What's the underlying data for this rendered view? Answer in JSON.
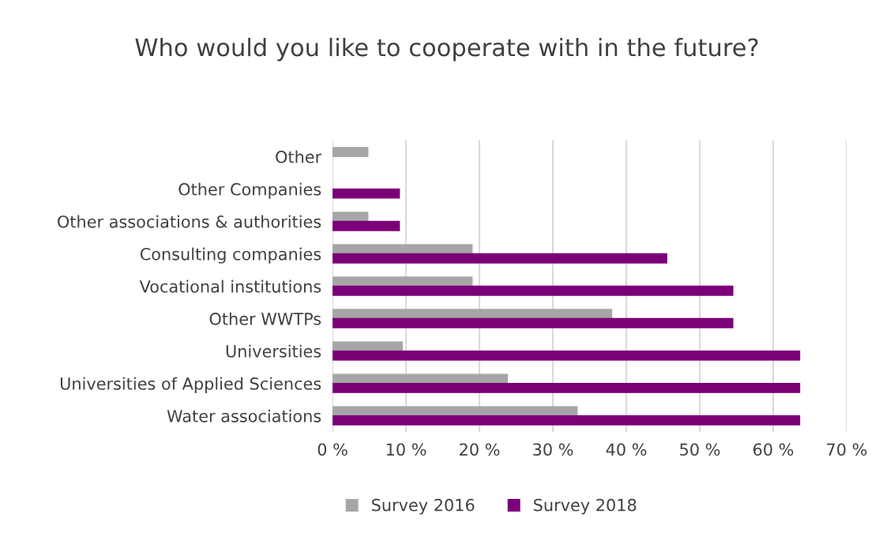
{
  "chart_data": {
    "type": "bar",
    "orientation": "horizontal",
    "title": "Who would you like to cooperate with in the future?",
    "categories": [
      "Other",
      "Other Companies",
      "Other associations & authorities",
      "Consulting companies",
      "Vocational institutions",
      "Other WWTPs",
      "Universities",
      "Universities of Applied Sciences",
      "Water associations"
    ],
    "series": [
      {
        "name": "Survey 2016",
        "color": "#a6a6a6",
        "values": [
          4.8,
          null,
          4.8,
          19.0,
          19.0,
          38.0,
          9.5,
          23.8,
          33.3
        ]
      },
      {
        "name": "Survey 2018",
        "color": "#7b0078",
        "values": [
          null,
          9.1,
          9.1,
          45.5,
          54.5,
          54.5,
          63.6,
          63.6,
          63.6
        ]
      }
    ],
    "xlim": [
      0,
      70
    ],
    "xticks": [
      {
        "value": 0,
        "label": "0 %"
      },
      {
        "value": 10,
        "label": "10 %"
      },
      {
        "value": 20,
        "label": "20 %"
      },
      {
        "value": 30,
        "label": "30 %"
      },
      {
        "value": 40,
        "label": "40 %"
      },
      {
        "value": 50,
        "label": "50 %"
      },
      {
        "value": 60,
        "label": "60 %"
      },
      {
        "value": 70,
        "label": "70 %"
      }
    ],
    "grid": "x",
    "legend": "bottom"
  }
}
